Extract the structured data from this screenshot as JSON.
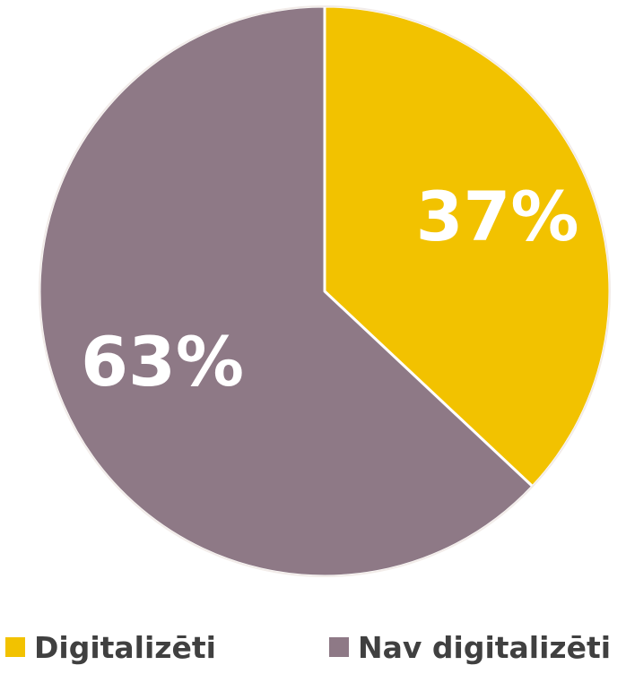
{
  "chart_data": {
    "type": "pie",
    "categories": [
      "Digitalizēti",
      "Nav digitalizēti"
    ],
    "values": [
      37,
      63
    ],
    "data_labels": [
      "37%",
      "63%"
    ],
    "colors": [
      "#F2C200",
      "#8E7986"
    ],
    "title": "",
    "legend_position": "bottom",
    "start_angle": "12 o'clock, clockwise"
  },
  "legend": {
    "items": [
      {
        "label": "Digitalizēti",
        "color": "#F2C200"
      },
      {
        "label": "Nav digitalizēti",
        "color": "#8E7986"
      }
    ]
  }
}
